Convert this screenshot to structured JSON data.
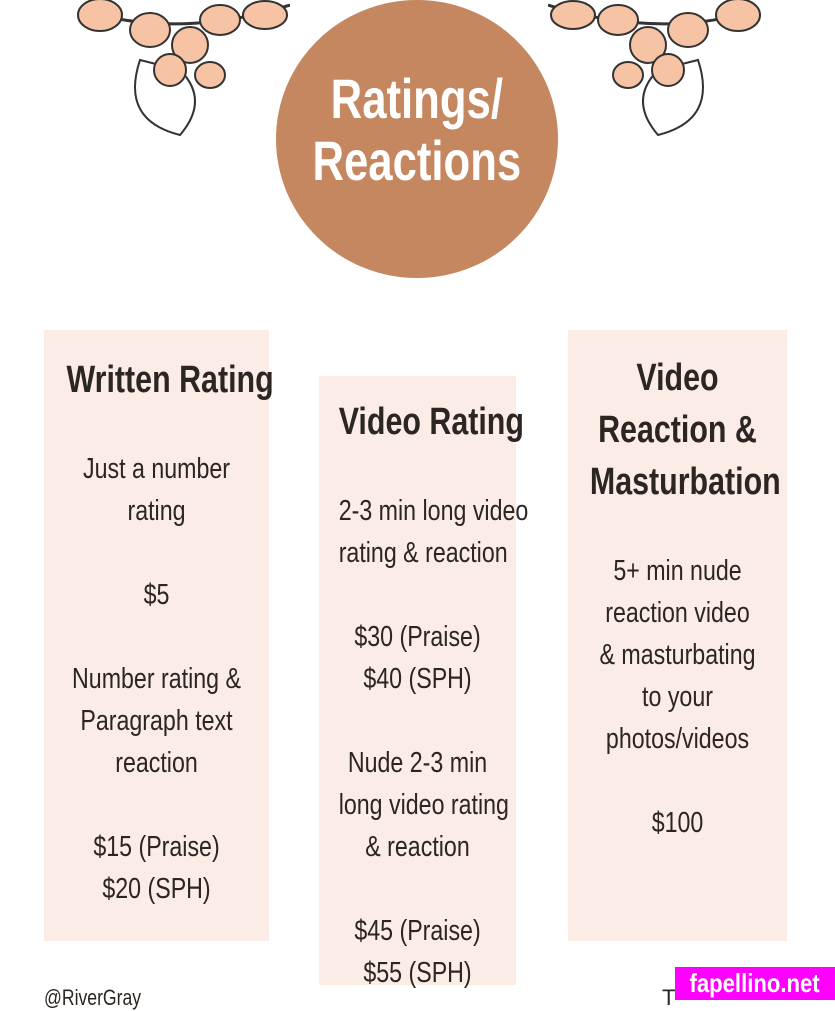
{
  "title_line1": "Ratings/",
  "title_line2": "Reactions",
  "colors": {
    "circle": "#c4875f",
    "panel": "#fbede5",
    "text": "#2b2622",
    "watermark": "#ff00ff"
  },
  "columns": [
    {
      "heading": [
        "Written Rating"
      ],
      "lines": [
        "Just a number",
        "rating",
        "",
        "$5",
        "",
        "Number rating &",
        "Paragraph text",
        "reaction",
        "",
        "$15 (Praise)",
        "$20 (SPH)"
      ]
    },
    {
      "heading": [
        "Video Rating"
      ],
      "lines": [
        "2-3 min long video",
        "rating & reaction",
        "",
        "$30 (Praise)",
        "$40 (SPH)",
        "",
        "Nude 2-3 min",
        "long video rating",
        "& reaction",
        "",
        "$45 (Praise)",
        "$55 (SPH)"
      ]
    },
    {
      "heading": [
        "Video",
        "Reaction &",
        "Masturbation"
      ],
      "lines": [
        "5+ min nude",
        "reaction video",
        "& masturbating",
        "to your",
        "photos/videos",
        "",
        "$100"
      ]
    }
  ],
  "footer": {
    "handle": "@RiverGray",
    "right": "T"
  },
  "watermark": "fapellino.net"
}
